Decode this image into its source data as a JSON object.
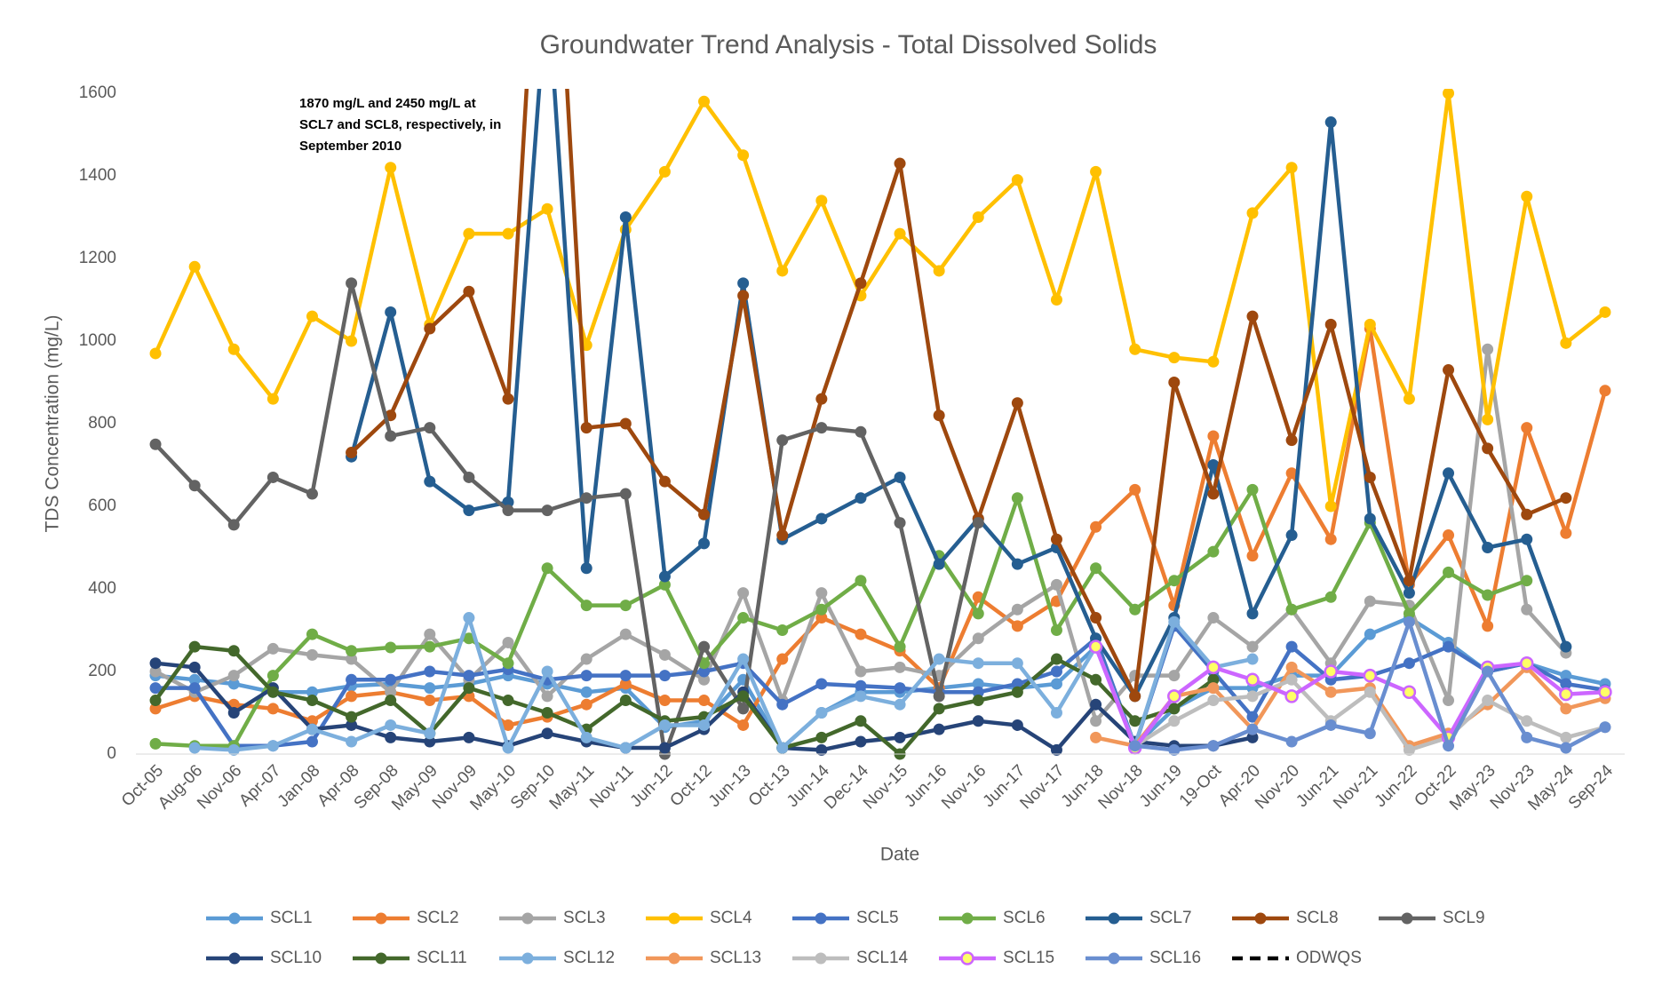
{
  "chart_data": {
    "type": "line",
    "title": "Groundwater Trend Analysis - Total Dissolved Solids",
    "x_label": "Date",
    "y_label": "TDS Concentration (mg/L)",
    "annotation": [
      "1870 mg/L and 2450 mg/L at",
      "SCL7 and SCL8, respectively, in",
      "September 2010"
    ],
    "categories": [
      "Oct-05",
      "Aug-06",
      "Nov-06",
      "Apr-07",
      "Jan-08",
      "Apr-08",
      "Sep-08",
      "May-09",
      "Nov-09",
      "May-10",
      "Sep-10",
      "May-11",
      "Nov-11",
      "Jun-12",
      "Oct-12",
      "Jun-13",
      "Oct-13",
      "Jun-14",
      "Dec-14",
      "Nov-15",
      "Jun-16",
      "Nov-16",
      "Jun-17",
      "Nov-17",
      "Jun-18",
      "Nov-18",
      "Jun-19",
      "19-Oct",
      "Apr-20",
      "Nov-20",
      "Jun-21",
      "Nov-21",
      "Jun-22",
      "Oct-22",
      "May-23",
      "Nov-23",
      "May-24",
      "Sep-24"
    ],
    "ylim": [
      0,
      1600
    ],
    "yticks": [
      0,
      200,
      400,
      600,
      800,
      1000,
      1200,
      1400,
      1600
    ],
    "grid": false,
    "legend": "bottom",
    "series": [
      {
        "name": "SCL1",
        "color": "#5B9BD5",
        "values": [
          190,
          180,
          170,
          150,
          150,
          165,
          170,
          160,
          170,
          190,
          170,
          150,
          160,
          65,
          80,
          180,
          15,
          100,
          150,
          150,
          160,
          170,
          160,
          170,
          260,
          20,
          110,
          160,
          160,
          190,
          190,
          290,
          330,
          270,
          200,
          220,
          190,
          170
        ]
      },
      {
        "name": "SCL2",
        "color": "#ED7D31",
        "values": [
          110,
          140,
          120,
          110,
          80,
          140,
          150,
          130,
          140,
          70,
          90,
          120,
          170,
          130,
          130,
          70,
          230,
          330,
          290,
          250,
          160,
          380,
          310,
          370,
          550,
          640,
          360,
          770,
          480,
          680,
          520,
          1030,
          410,
          530,
          310,
          790,
          535,
          880
        ]
      },
      {
        "name": "SCL3",
        "color": "#A5A5A5",
        "values": [
          200,
          150,
          190,
          255,
          240,
          230,
          150,
          290,
          180,
          270,
          140,
          230,
          290,
          240,
          180,
          390,
          130,
          390,
          200,
          210,
          190,
          280,
          350,
          410,
          80,
          190,
          190,
          330,
          260,
          350,
          220,
          370,
          360,
          130,
          980,
          350,
          245,
          null
        ]
      },
      {
        "name": "SCL4",
        "color": "#FFC000",
        "values": [
          970,
          1180,
          980,
          860,
          1060,
          1000,
          1420,
          1040,
          1260,
          1260,
          1320,
          990,
          1270,
          1410,
          1580,
          1450,
          1170,
          1340,
          1110,
          1260,
          1170,
          1300,
          1390,
          1100,
          1410,
          980,
          960,
          950,
          1310,
          1420,
          600,
          1040,
          860,
          1600,
          810,
          1350,
          995,
          1070
        ]
      },
      {
        "name": "SCL5",
        "color": "#4472C4",
        "values": [
          160,
          160,
          20,
          20,
          30,
          180,
          180,
          200,
          190,
          205,
          180,
          190,
          190,
          190,
          200,
          220,
          120,
          170,
          165,
          160,
          150,
          150,
          170,
          200,
          280,
          20,
          310,
          200,
          90,
          260,
          180,
          190,
          220,
          260,
          200,
          220,
          170,
          155
        ]
      },
      {
        "name": "SCL6",
        "color": "#70AD47",
        "values": [
          25,
          20,
          20,
          190,
          290,
          250,
          258,
          260,
          280,
          220,
          450,
          360,
          360,
          410,
          220,
          330,
          300,
          350,
          420,
          260,
          480,
          340,
          620,
          300,
          450,
          350,
          420,
          490,
          640,
          350,
          380,
          560,
          340,
          440,
          385,
          420,
          null,
          null
        ]
      },
      {
        "name": "SCL7",
        "color": "#255E91",
        "values": [
          null,
          null,
          null,
          null,
          null,
          720,
          1070,
          660,
          590,
          610,
          1870,
          450,
          1300,
          430,
          510,
          1140,
          520,
          570,
          620,
          670,
          460,
          570,
          460,
          500,
          280,
          140,
          330,
          700,
          340,
          530,
          1530,
          570,
          390,
          680,
          500,
          520,
          260,
          null
        ]
      },
      {
        "name": "SCL8",
        "color": "#9E480E",
        "values": [
          null,
          null,
          null,
          null,
          null,
          730,
          820,
          1030,
          1120,
          860,
          2450,
          790,
          800,
          660,
          580,
          1110,
          530,
          860,
          1140,
          1430,
          820,
          570,
          850,
          520,
          330,
          140,
          900,
          630,
          1060,
          760,
          1040,
          670,
          420,
          930,
          740,
          580,
          620,
          null
        ]
      },
      {
        "name": "SCL9",
        "color": "#636363",
        "values": [
          750,
          650,
          555,
          670,
          630,
          1140,
          770,
          790,
          670,
          590,
          590,
          620,
          630,
          0,
          260,
          110,
          760,
          790,
          780,
          560,
          140,
          560,
          null,
          null,
          null,
          null,
          null,
          null,
          null,
          null,
          null,
          null,
          null,
          null,
          null,
          null,
          null,
          null
        ]
      },
      {
        "name": "SCL10",
        "color": "#264478",
        "values": [
          220,
          210,
          100,
          160,
          60,
          70,
          40,
          30,
          40,
          20,
          50,
          30,
          15,
          15,
          60,
          150,
          15,
          10,
          30,
          40,
          60,
          80,
          70,
          10,
          120,
          30,
          20,
          20,
          40,
          null,
          null,
          null,
          null,
          null,
          null,
          null,
          null,
          null
        ]
      },
      {
        "name": "SCL11",
        "color": "#43682B",
        "values": [
          130,
          260,
          250,
          150,
          130,
          90,
          130,
          50,
          160,
          130,
          100,
          60,
          130,
          80,
          90,
          140,
          15,
          40,
          80,
          0,
          110,
          130,
          150,
          230,
          180,
          80,
          110,
          180,
          null,
          null,
          null,
          null,
          null,
          null,
          null,
          null,
          null,
          null
        ]
      },
      {
        "name": "SCL12",
        "color": "#7CAFDD",
        "values": [
          null,
          15,
          10,
          20,
          60,
          30,
          70,
          50,
          330,
          15,
          200,
          40,
          15,
          70,
          70,
          230,
          15,
          100,
          140,
          120,
          230,
          220,
          220,
          100,
          260,
          20,
          320,
          210,
          230,
          null,
          null,
          null,
          null,
          null,
          null,
          null,
          null,
          null
        ]
      },
      {
        "name": "SCL13",
        "color": "#F1975A",
        "values": [
          null,
          null,
          null,
          null,
          null,
          null,
          null,
          null,
          null,
          null,
          null,
          null,
          null,
          null,
          null,
          null,
          null,
          null,
          null,
          null,
          null,
          null,
          null,
          null,
          40,
          20,
          140,
          160,
          60,
          210,
          150,
          160,
          20,
          50,
          120,
          210,
          110,
          135
        ]
      },
      {
        "name": "SCL14",
        "color": "#BDBDBD",
        "values": [
          null,
          null,
          null,
          null,
          null,
          null,
          null,
          null,
          null,
          null,
          null,
          null,
          null,
          null,
          null,
          null,
          null,
          null,
          null,
          null,
          null,
          null,
          null,
          null,
          null,
          20,
          80,
          130,
          140,
          180,
          80,
          150,
          10,
          40,
          130,
          80,
          40,
          65
        ]
      },
      {
        "name": "SCL15",
        "color": "#CC66FF",
        "marker_color": "#FFFF66",
        "values": [
          null,
          null,
          null,
          null,
          null,
          null,
          null,
          null,
          null,
          null,
          null,
          null,
          null,
          null,
          null,
          null,
          null,
          null,
          null,
          null,
          null,
          null,
          null,
          null,
          260,
          15,
          140,
          210,
          180,
          140,
          200,
          190,
          150,
          40,
          210,
          220,
          145,
          150
        ]
      },
      {
        "name": "SCL16",
        "color": "#698ED0",
        "values": [
          null,
          null,
          null,
          null,
          null,
          null,
          null,
          null,
          null,
          null,
          null,
          null,
          null,
          null,
          null,
          null,
          null,
          null,
          null,
          null,
          null,
          null,
          null,
          null,
          null,
          20,
          10,
          20,
          60,
          30,
          70,
          50,
          320,
          20,
          200,
          40,
          15,
          65
        ]
      },
      {
        "name": "ODWQS",
        "color": "#000000",
        "dashed": true,
        "values": [
          null,
          null,
          null,
          null,
          null,
          null,
          null,
          null,
          null,
          null,
          null,
          null,
          null,
          null,
          null,
          null,
          null,
          null,
          null,
          null,
          null,
          null,
          null,
          null,
          null,
          null,
          null,
          null,
          null,
          null,
          null,
          null,
          null,
          null,
          null,
          null,
          null,
          null
        ]
      }
    ]
  }
}
